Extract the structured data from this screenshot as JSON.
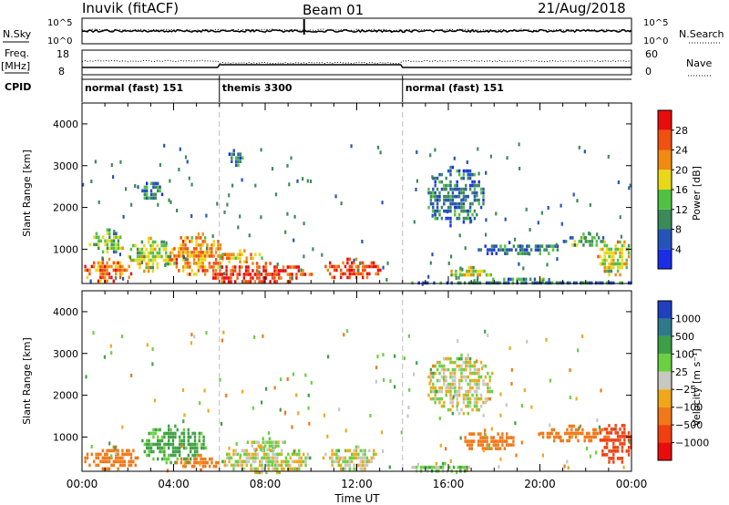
{
  "header": {
    "station": "Inuvik (fitACF)",
    "beam": "Beam 01",
    "date": "21/Aug/2018"
  },
  "top_panels": {
    "nsky_label": "N.Sky",
    "nsky_ticks": [
      "10^5",
      "10^0"
    ],
    "nsearch_label": "N.Search",
    "nsearch_ticks": [
      "10^5",
      "10^0"
    ],
    "freq_label_1": "Freq.",
    "freq_label_2": "[MHz]",
    "freq_ticks": [
      "18",
      "8"
    ],
    "nave_label": "Nave",
    "nave_ticks": [
      "60",
      "0"
    ],
    "cpid_label": "CPID",
    "cpid_segments": [
      {
        "label": "normal (fast) 151",
        "start_h": 0,
        "end_h": 6
      },
      {
        "label": "themis 3300",
        "start_h": 6,
        "end_h": 14
      },
      {
        "label": "normal (fast) 151",
        "start_h": 14,
        "end_h": 24
      }
    ]
  },
  "x_axis": {
    "label": "Time UT",
    "ticks": [
      "00:00",
      "04:00",
      "08:00",
      "12:00",
      "16:00",
      "20:00",
      "00:00"
    ]
  },
  "power_panel": {
    "ylabel": "Slant Range [km]",
    "yticks": [
      "1000",
      "2000",
      "3000",
      "4000"
    ],
    "cbar_label": "Power [dB]",
    "cbar_ticks": [
      "4",
      "8",
      "12",
      "16",
      "20",
      "24",
      "28"
    ],
    "colors": [
      "#1a2ee8",
      "#2554b8",
      "#3c8a5a",
      "#52c040",
      "#e8d818",
      "#f08a10",
      "#f05010",
      "#e80c0c"
    ]
  },
  "velocity_panel": {
    "ylabel": "Slant Range [km]",
    "yticks": [
      "1000",
      "2000",
      "3000",
      "4000"
    ],
    "cbar_label": "Velocity [m s⁻¹]",
    "cbar_ticks": [
      "1000",
      "500",
      "100",
      "25",
      "−25",
      "−100",
      "−500",
      "−1000"
    ],
    "colors": [
      "#2140c0",
      "#2e7a8a",
      "#3ea045",
      "#6bd040",
      "#c8c8c0",
      "#f0a818",
      "#f07818",
      "#f04010",
      "#e80c0c"
    ]
  },
  "chart_data": {
    "type": "heatmap",
    "x_range_hours": [
      0,
      24
    ],
    "y_range_km": [
      180,
      4500
    ],
    "x_label": "Time UT",
    "y_label": "Slant Range [km]",
    "power_scale_db": [
      0,
      32
    ],
    "velocity_scale": [
      -1200,
      1200
    ],
    "mode_switch_hours": [
      6,
      14
    ],
    "power_blobs": [
      {
        "t0": 0.0,
        "t1": 2.2,
        "r0": 250,
        "r1": 800,
        "db": 24
      },
      {
        "t0": 0.3,
        "t1": 1.8,
        "r0": 900,
        "r1": 1500,
        "db": 14
      },
      {
        "t0": 2.0,
        "t1": 4.0,
        "r0": 500,
        "r1": 1300,
        "db": 16
      },
      {
        "t0": 3.8,
        "t1": 6.2,
        "r0": 400,
        "r1": 1400,
        "db": 22
      },
      {
        "t0": 5.5,
        "t1": 10.0,
        "r0": 180,
        "r1": 700,
        "db": 28
      },
      {
        "t0": 6.0,
        "t1": 8.0,
        "r0": 700,
        "r1": 1000,
        "db": 20
      },
      {
        "t0": 10.5,
        "t1": 13.0,
        "r0": 300,
        "r1": 800,
        "db": 27
      },
      {
        "t0": 6.3,
        "t1": 7.0,
        "r0": 3000,
        "r1": 3400,
        "db": 9
      },
      {
        "t0": 16.0,
        "t1": 18.0,
        "r0": 350,
        "r1": 600,
        "db": 18
      },
      {
        "t0": 14.0,
        "t1": 24.0,
        "r0": 180,
        "r1": 320,
        "db": 8
      },
      {
        "t0": 17.0,
        "t1": 21.0,
        "r0": 900,
        "r1": 1200,
        "db": 8
      },
      {
        "t0": 21.0,
        "t1": 23.0,
        "r0": 1100,
        "r1": 1400,
        "db": 12
      },
      {
        "t0": 22.5,
        "t1": 24.0,
        "r0": 400,
        "r1": 1300,
        "db": 18
      },
      {
        "t0": 15.0,
        "t1": 17.5,
        "r0": 1600,
        "r1": 3000,
        "db": 8
      },
      {
        "t0": 2.5,
        "t1": 3.5,
        "r0": 2200,
        "r1": 2700,
        "db": 9
      }
    ],
    "velocity_blobs": [
      {
        "t0": 0.0,
        "t1": 2.5,
        "r0": 250,
        "r1": 800,
        "v": -300
      },
      {
        "t0": 2.5,
        "t1": 5.5,
        "r0": 400,
        "r1": 1300,
        "v": 150
      },
      {
        "t0": 4.0,
        "t1": 6.0,
        "r0": 250,
        "r1": 600,
        "v": -400
      },
      {
        "t0": 6.0,
        "t1": 10.0,
        "r0": 180,
        "r1": 800,
        "v": 0
      },
      {
        "t0": 7.0,
        "t1": 9.0,
        "r0": 700,
        "r1": 1000,
        "v": 0
      },
      {
        "t0": 10.5,
        "t1": 13.0,
        "r0": 250,
        "r1": 800,
        "v": 10
      },
      {
        "t0": 14.0,
        "t1": 17.0,
        "r0": 180,
        "r1": 400,
        "v": 60
      },
      {
        "t0": 16.5,
        "t1": 19.0,
        "r0": 700,
        "r1": 1200,
        "v": -300
      },
      {
        "t0": 20.0,
        "t1": 23.0,
        "r0": 900,
        "r1": 1300,
        "v": -300
      },
      {
        "t0": 22.5,
        "t1": 24.0,
        "r0": 400,
        "r1": 1400,
        "v": -700
      },
      {
        "t0": 15.0,
        "t1": 18.0,
        "r0": 1600,
        "r1": 3000,
        "v": 0
      }
    ]
  }
}
